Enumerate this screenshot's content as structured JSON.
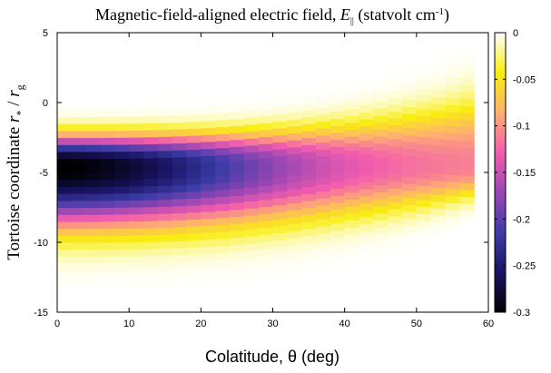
{
  "chart_data": {
    "type": "heatmap",
    "title": {
      "prefix": "Magnetic-field-aligned electric field, ",
      "symbol": "E",
      "symbol_sub": "||",
      "unit_open": " (statvolt cm",
      "unit_sup": "-1",
      "unit_close": ")"
    },
    "xlabel": "Colatitude, θ (deg)",
    "ylabel": {
      "prefix": "Tortoise coordinate ",
      "r1": "r",
      "r1_sub": "*",
      "sep": " / ",
      "r2": "r",
      "r2_sub": "g"
    },
    "xlim": [
      0,
      60
    ],
    "ylim": [
      -15,
      5
    ],
    "x_ticks": [
      "0",
      "10",
      "20",
      "30",
      "40",
      "50",
      "60"
    ],
    "x_tick_values": [
      0,
      10,
      20,
      30,
      40,
      50,
      60
    ],
    "y_ticks": [
      "5",
      "0",
      "-5",
      "-10",
      "-15"
    ],
    "y_tick_values": [
      5,
      0,
      -5,
      -10,
      -15
    ],
    "colorbar": {
      "range": [
        -0.3,
        0
      ],
      "ticks": [
        "0",
        "-0.05",
        "-0.1",
        "-0.15",
        "-0.2",
        "-0.25",
        "-0.3"
      ],
      "tick_values": [
        0,
        -0.05,
        -0.1,
        -0.15,
        -0.2,
        -0.25,
        -0.3
      ],
      "colormap": [
        "#000000",
        "#1a1464",
        "#3c3ca8",
        "#9a46b4",
        "#f25cae",
        "#ffb070",
        "#f8ee10",
        "#ffffff"
      ]
    },
    "grid": false,
    "legend": "none",
    "field_model": {
      "x_step": 2,
      "y_step": 0.5,
      "x_max": 58,
      "y_band_center": -4.5,
      "peak_value": -0.3,
      "band_halfwidth": 3.6,
      "band_shape_exponent": 2.4,
      "theta_falloff": 0.0011,
      "upper_edge_at_0": 0,
      "upper_edge_at_58": 5,
      "lower_edge_at_0": -13.5,
      "lower_edge_at_58": -9
    }
  }
}
